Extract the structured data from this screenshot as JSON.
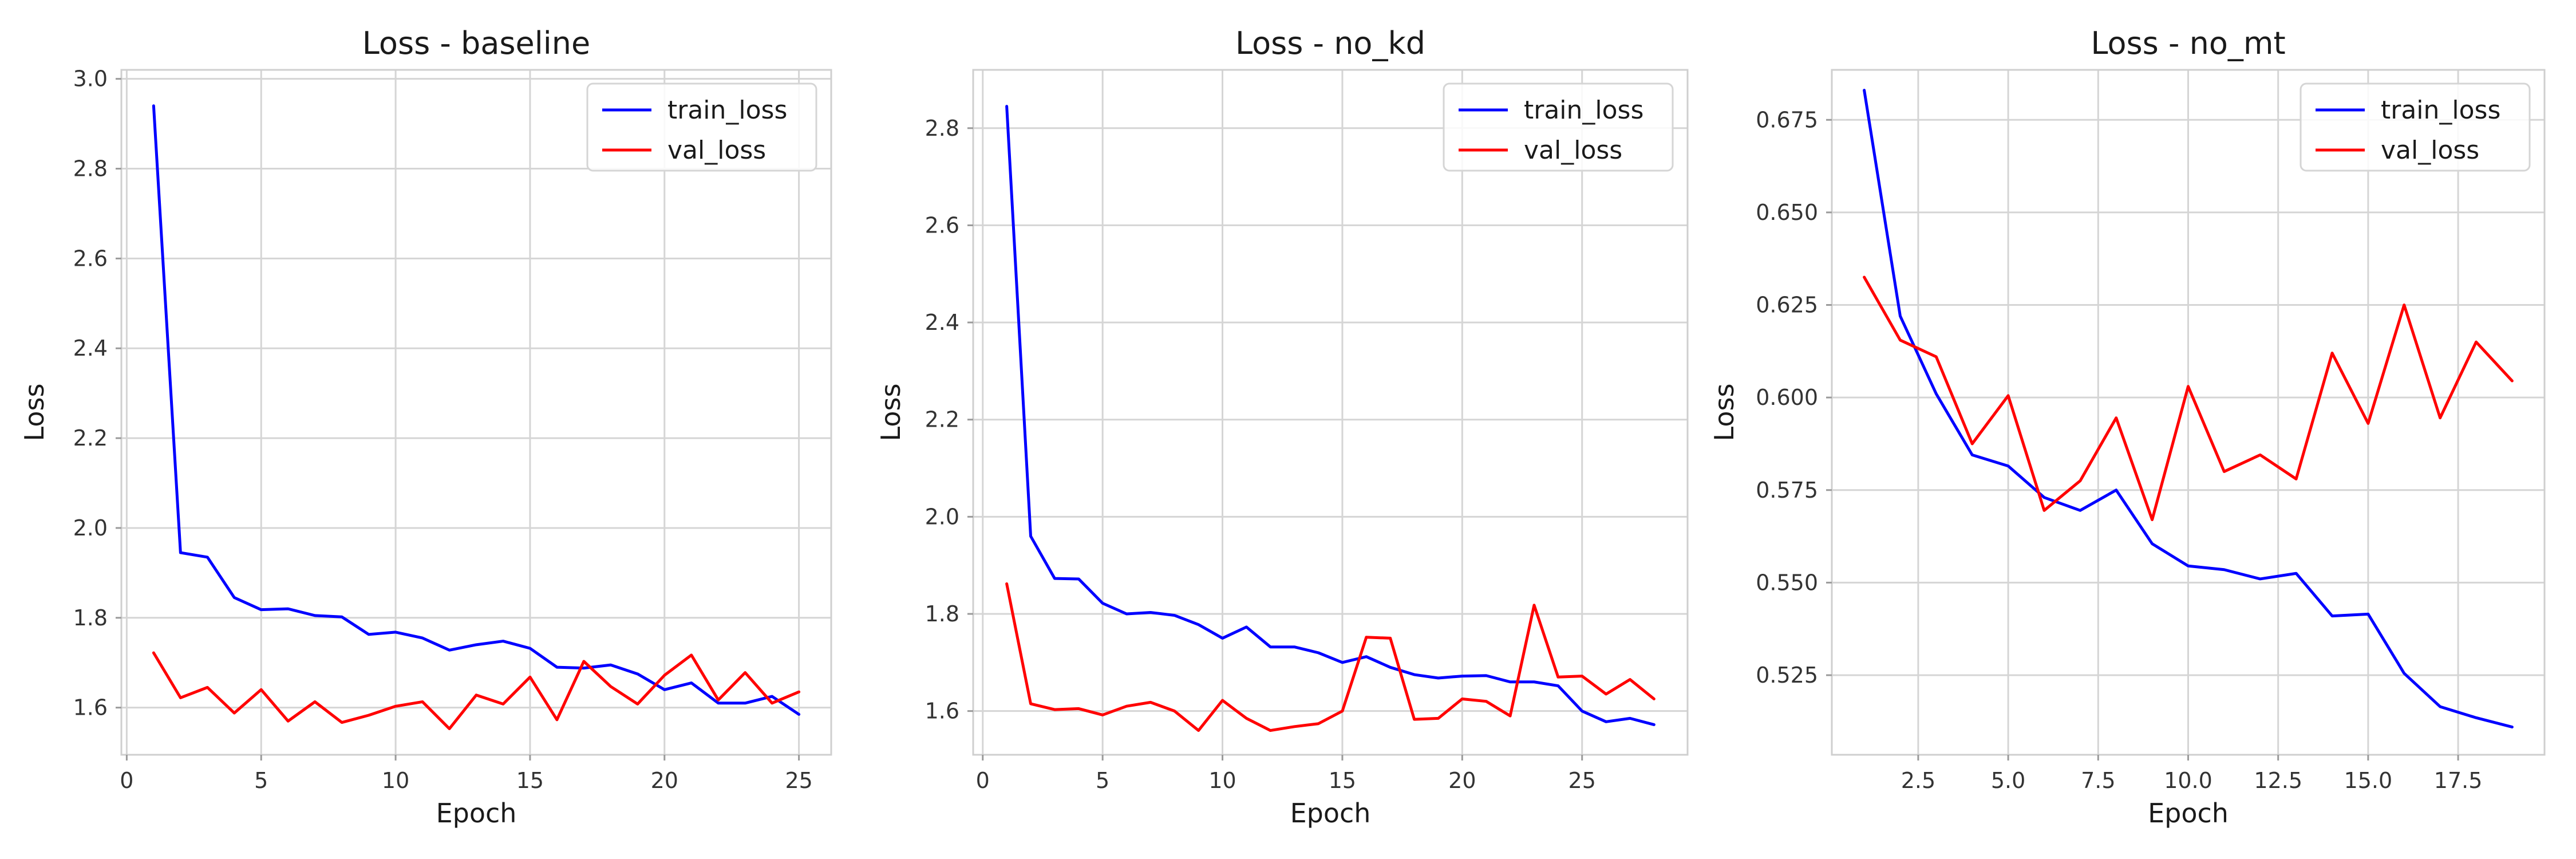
{
  "colors": {
    "train": "#0000ff",
    "val": "#ff0000"
  },
  "chart_data": [
    {
      "type": "line",
      "title": "Loss - baseline",
      "xlabel": "Epoch",
      "ylabel": "Loss",
      "xlim": [
        -0.2,
        26.2
      ],
      "ylim": [
        1.495,
        3.02
      ],
      "xticks": [
        0,
        5,
        10,
        15,
        20,
        25
      ],
      "xtick_labels": [
        "0",
        "5",
        "10",
        "15",
        "20",
        "25"
      ],
      "yticks": [
        1.6,
        1.8,
        2.0,
        2.2,
        2.4,
        2.6,
        2.8,
        3.0
      ],
      "ytick_labels": [
        "1.6",
        "1.8",
        "2.0",
        "2.2",
        "2.4",
        "2.6",
        "2.8",
        "3.0"
      ],
      "grid": true,
      "legend": "top-right",
      "x": [
        1,
        2,
        3,
        4,
        5,
        6,
        7,
        8,
        9,
        10,
        11,
        12,
        13,
        14,
        15,
        16,
        17,
        18,
        19,
        20,
        21,
        22,
        23,
        24,
        25
      ],
      "series": [
        {
          "name": "train_loss",
          "color": "#0000ff",
          "values": [
            2.94,
            1.945,
            1.935,
            1.845,
            1.818,
            1.82,
            1.805,
            1.802,
            1.763,
            1.768,
            1.755,
            1.728,
            1.74,
            1.748,
            1.732,
            1.69,
            1.688,
            1.695,
            1.675,
            1.64,
            1.655,
            1.61,
            1.61,
            1.625,
            1.585
          ]
        },
        {
          "name": "val_loss",
          "color": "#ff0000",
          "values": [
            1.722,
            1.622,
            1.645,
            1.588,
            1.64,
            1.57,
            1.613,
            1.567,
            1.583,
            1.603,
            1.613,
            1.553,
            1.628,
            1.608,
            1.668,
            1.573,
            1.703,
            1.647,
            1.608,
            1.672,
            1.717,
            1.617,
            1.678,
            1.61,
            1.635
          ]
        }
      ]
    },
    {
      "type": "line",
      "title": "Loss - no_kd",
      "xlabel": "Epoch",
      "ylabel": "Loss",
      "xlim": [
        -0.4,
        29.4
      ],
      "ylim": [
        1.51,
        2.92
      ],
      "xticks": [
        0,
        5,
        10,
        15,
        20,
        25
      ],
      "xtick_labels": [
        "0",
        "5",
        "10",
        "15",
        "20",
        "25"
      ],
      "yticks": [
        1.6,
        1.8,
        2.0,
        2.2,
        2.4,
        2.6,
        2.8
      ],
      "ytick_labels": [
        "1.6",
        "1.8",
        "2.0",
        "2.2",
        "2.4",
        "2.6",
        "2.8"
      ],
      "grid": true,
      "legend": "top-right",
      "x": [
        1,
        2,
        3,
        4,
        5,
        6,
        7,
        8,
        9,
        10,
        11,
        12,
        13,
        14,
        15,
        16,
        17,
        18,
        19,
        20,
        21,
        22,
        23,
        24,
        25,
        26,
        27,
        28
      ],
      "series": [
        {
          "name": "train_loss",
          "color": "#0000ff",
          "values": [
            2.845,
            1.96,
            1.873,
            1.872,
            1.822,
            1.8,
            1.803,
            1.797,
            1.778,
            1.75,
            1.773,
            1.732,
            1.732,
            1.72,
            1.7,
            1.712,
            1.69,
            1.675,
            1.668,
            1.672,
            1.673,
            1.66,
            1.66,
            1.652,
            1.6,
            1.578,
            1.585,
            1.572
          ]
        },
        {
          "name": "val_loss",
          "color": "#ff0000",
          "values": [
            1.862,
            1.615,
            1.603,
            1.605,
            1.592,
            1.61,
            1.618,
            1.6,
            1.56,
            1.622,
            1.585,
            1.56,
            1.568,
            1.574,
            1.6,
            1.752,
            1.75,
            1.583,
            1.585,
            1.625,
            1.62,
            1.59,
            1.818,
            1.67,
            1.672,
            1.635,
            1.665,
            1.625
          ]
        }
      ]
    },
    {
      "type": "line",
      "title": "Loss - no_mt",
      "xlabel": "Epoch",
      "ylabel": "Loss",
      "xlim": [
        0.1,
        19.9
      ],
      "ylim": [
        0.5035,
        0.6885
      ],
      "xticks": [
        2.5,
        5.0,
        7.5,
        10.0,
        12.5,
        15.0,
        17.5
      ],
      "xtick_labels": [
        "2.5",
        "5.0",
        "7.5",
        "10.0",
        "12.5",
        "15.0",
        "17.5"
      ],
      "yticks": [
        0.525,
        0.55,
        0.575,
        0.6,
        0.625,
        0.65,
        0.675
      ],
      "ytick_labels": [
        "0.525",
        "0.550",
        "0.575",
        "0.600",
        "0.625",
        "0.650",
        "0.675"
      ],
      "grid": true,
      "legend": "top-right",
      "x": [
        1,
        2,
        3,
        4,
        5,
        6,
        7,
        8,
        9,
        10,
        11,
        12,
        13,
        14,
        15,
        16,
        17,
        18,
        19
      ],
      "series": [
        {
          "name": "train_loss",
          "color": "#0000ff",
          "values": [
            0.683,
            0.622,
            0.601,
            0.5845,
            0.5815,
            0.573,
            0.5695,
            0.575,
            0.5605,
            0.5545,
            0.5535,
            0.551,
            0.5525,
            0.541,
            0.5415,
            0.5255,
            0.5165,
            0.5135,
            0.511
          ]
        },
        {
          "name": "val_loss",
          "color": "#ff0000",
          "values": [
            0.6325,
            0.6155,
            0.611,
            0.5875,
            0.6005,
            0.5695,
            0.5775,
            0.5945,
            0.567,
            0.603,
            0.58,
            0.5845,
            0.578,
            0.612,
            0.593,
            0.625,
            0.5945,
            0.615,
            0.6045
          ]
        }
      ]
    }
  ]
}
